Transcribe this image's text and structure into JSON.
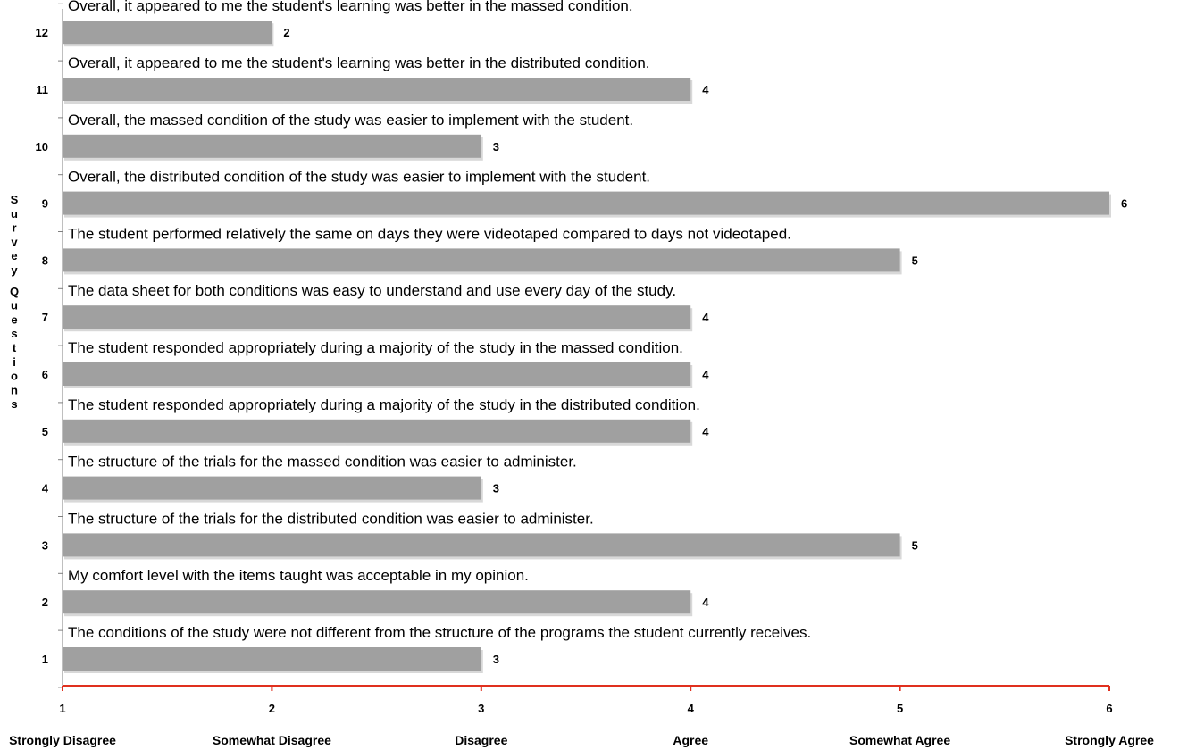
{
  "chart_data": {
    "type": "bar",
    "orientation": "horizontal",
    "categories": [
      "1",
      "2",
      "3",
      "4",
      "5",
      "6",
      "7",
      "8",
      "9",
      "10",
      "11",
      "12"
    ],
    "values": [
      3,
      4,
      5,
      3,
      4,
      4,
      4,
      5,
      6,
      3,
      4,
      2
    ],
    "question_texts": [
      "The conditions of the study were not different from the structure of the programs the student currently receives.",
      "My comfort level with the items taught was acceptable in my opinion.",
      "The structure of the trials for the distributed condition was easier to administer.",
      "The structure of the trials for the massed condition was easier to administer.",
      "The student responded appropriately during a majority of the study in the distributed condition.",
      "The student responded appropriately during a majority of the study in the massed condition.",
      "The data sheet for both conditions was easy to understand and use every day of the study.",
      "The student performed relatively the same on days they were videotaped compared to days not videotaped.",
      "Overall, the distributed condition of the study was easier to implement with the student.",
      "Overall, the massed condition of the study was easier to implement with the student.",
      "Overall, it appeared to me the student's learning was better in the distributed condition.",
      "Overall, it appeared to me the student's learning was better in the massed condition."
    ],
    "xlim": [
      1,
      6
    ],
    "x_ticks": [
      1,
      2,
      3,
      4,
      5,
      6
    ],
    "x_tick_labels": [
      "1",
      "2",
      "3",
      "4",
      "5",
      "6"
    ],
    "x_category_labels": [
      "Strongly Disagree",
      "Somewhat Disagree",
      "Disagree",
      "Agree",
      "Somewhat Agree",
      "Strongly Agree"
    ],
    "ylabel": "Survey Questions",
    "title": "",
    "xlabel": "",
    "grid": false,
    "colors": {
      "bar": "#a0a0a0",
      "bar_shadow": "#d8d8d8",
      "x_axis": "#e0301e",
      "y_axis": "#7f7f7f"
    }
  }
}
